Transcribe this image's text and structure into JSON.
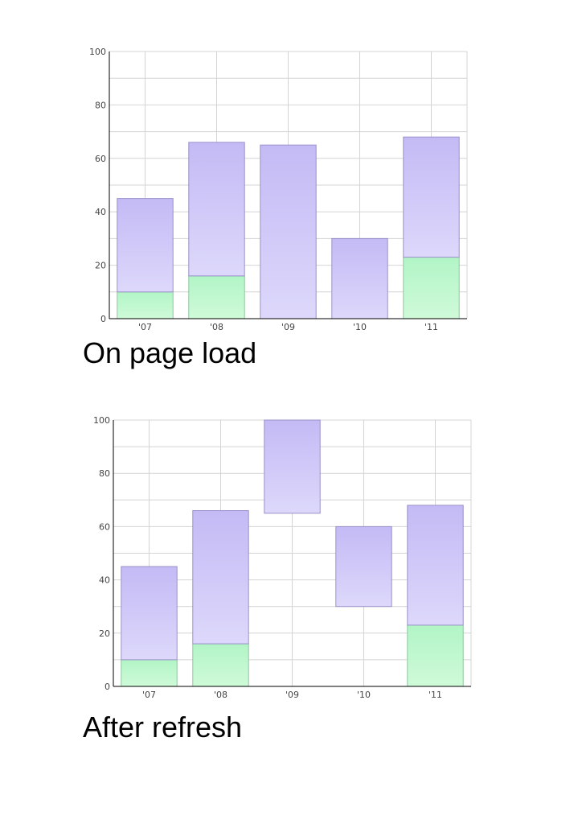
{
  "colors": {
    "purple_top": "#c4baf5",
    "purple_bottom": "#ddd8fb",
    "purple_stroke": "#9a92c9",
    "green_top": "#b2f5c6",
    "green_bottom": "#cffad9",
    "green_stroke": "#8fc79e",
    "grid": "#d4d4d4",
    "axis": "#000000"
  },
  "chart_data": [
    {
      "type": "bar",
      "caption": "On page load",
      "categories": [
        "'07",
        "'08",
        "'09",
        "'10",
        "'11"
      ],
      "y_ticks": [
        "0",
        "20",
        "40",
        "60",
        "80",
        "100"
      ],
      "ylim": [
        0,
        100
      ],
      "grid": true,
      "series": [
        {
          "color": "green",
          "ranges": [
            [
              0,
              10
            ],
            [
              0,
              16
            ],
            null,
            null,
            [
              0,
              23
            ]
          ]
        },
        {
          "color": "purple",
          "ranges": [
            [
              10,
              45
            ],
            [
              16,
              66
            ],
            [
              0,
              65
            ],
            [
              0,
              30
            ],
            [
              23,
              68
            ]
          ]
        }
      ]
    },
    {
      "type": "bar",
      "caption": "After refresh",
      "categories": [
        "'07",
        "'08",
        "'09",
        "'10",
        "'11"
      ],
      "y_ticks": [
        "0",
        "20",
        "40",
        "60",
        "80",
        "100"
      ],
      "ylim": [
        0,
        100
      ],
      "grid": true,
      "series": [
        {
          "color": "green",
          "ranges": [
            [
              0,
              10
            ],
            [
              0,
              16
            ],
            null,
            null,
            [
              0,
              23
            ]
          ]
        },
        {
          "color": "purple",
          "ranges": [
            [
              10,
              45
            ],
            [
              16,
              66
            ],
            [
              65,
              100
            ],
            [
              30,
              60
            ],
            [
              23,
              68
            ]
          ]
        }
      ]
    }
  ]
}
